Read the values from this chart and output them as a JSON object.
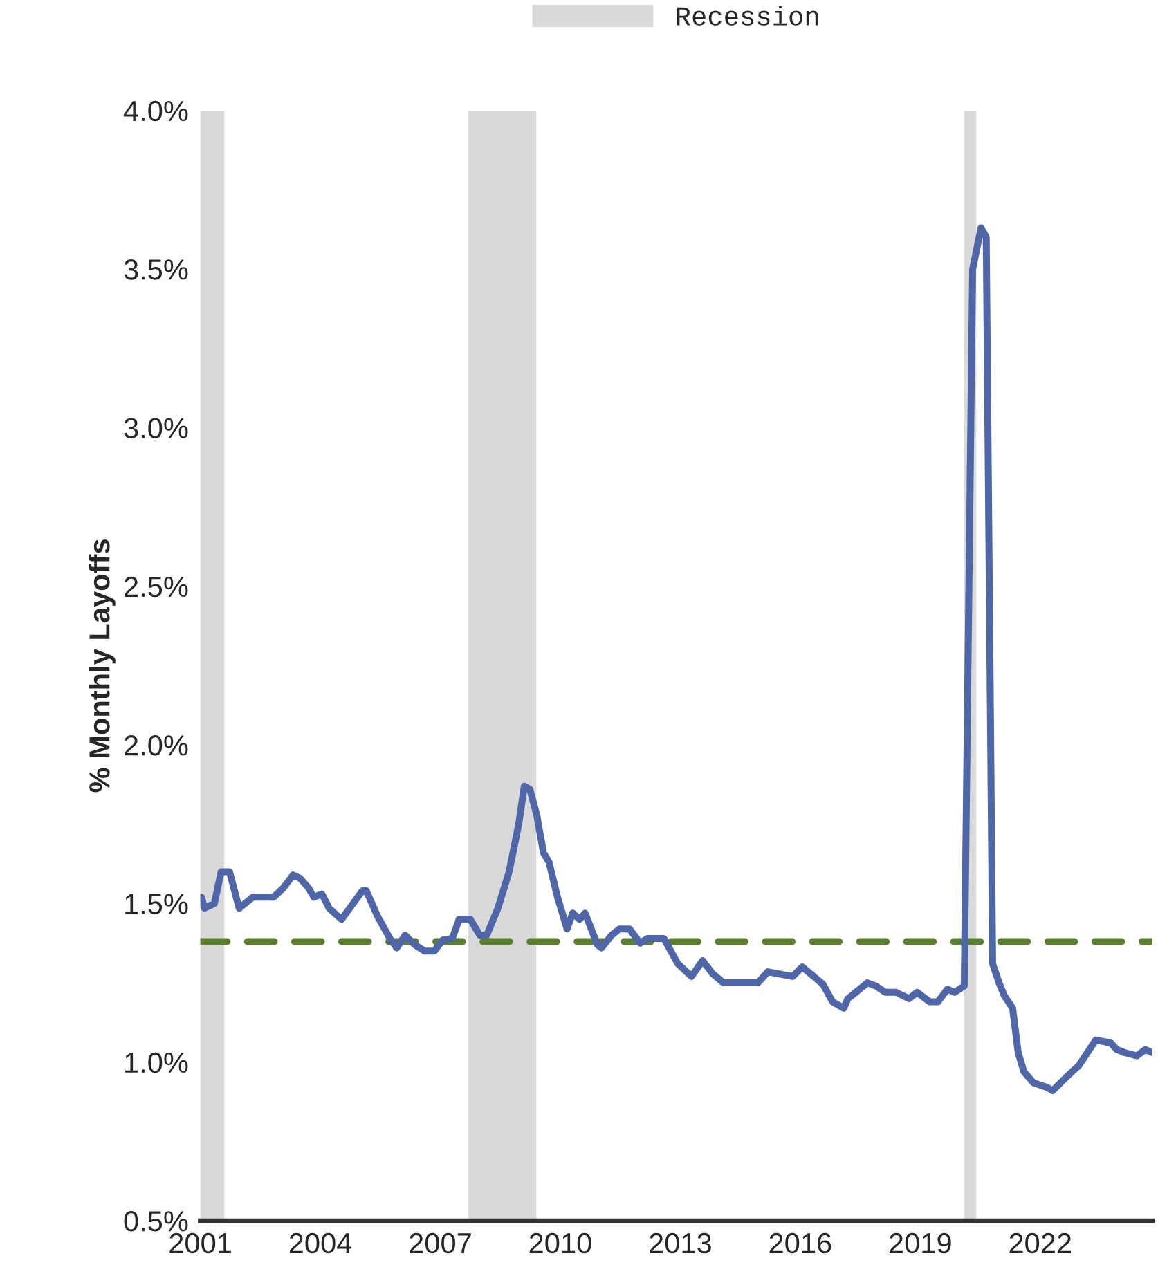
{
  "chart_data": {
    "type": "line",
    "ylabel": "% Monthly Layoffs",
    "x": [
      2001.03,
      2001.1,
      2001.35,
      2001.52,
      2001.73,
      2001.97,
      2002.31,
      2002.83,
      2003.08,
      2003.32,
      2003.49,
      2003.7,
      2003.84,
      2004.04,
      2004.22,
      2004.53,
      2005.05,
      2005.15,
      2005.43,
      2005.74,
      2005.91,
      2006.12,
      2006.36,
      2006.61,
      2006.85,
      2007.06,
      2007.3,
      2007.47,
      2007.75,
      2007.99,
      2008.16,
      2008.44,
      2008.72,
      2008.96,
      2009.1,
      2009.24,
      2009.41,
      2009.58,
      2009.72,
      2009.93,
      2010.17,
      2010.31,
      2010.48,
      2010.62,
      2010.93,
      2011.03,
      2011.28,
      2011.48,
      2011.73,
      2012.0,
      2012.18,
      2012.59,
      2012.94,
      2013.28,
      2013.56,
      2013.8,
      2014.08,
      2014.94,
      2015.19,
      2015.81,
      2016.05,
      2016.29,
      2016.57,
      2016.81,
      2017.09,
      2017.19,
      2017.68,
      2017.89,
      2018.13,
      2018.4,
      2018.72,
      2018.92,
      2019.24,
      2019.44,
      2019.68,
      2019.86,
      2020.1,
      2020.31,
      2020.52,
      2020.65,
      2020.81,
      2020.97,
      2021.1,
      2021.31,
      2021.45,
      2021.59,
      2021.83,
      2022.18,
      2022.31,
      2022.63,
      2022.97,
      2023.18,
      2023.39,
      2023.77,
      2023.91,
      2024.11,
      2024.42,
      2024.63,
      2024.8
    ],
    "series": [
      {
        "color": "#4f67a8",
        "values": [
          1.52,
          1.485,
          1.5,
          1.6,
          1.6,
          1.485,
          1.52,
          1.52,
          1.55,
          1.59,
          1.58,
          1.55,
          1.52,
          1.53,
          1.485,
          1.45,
          1.54,
          1.54,
          1.46,
          1.39,
          1.36,
          1.4,
          1.37,
          1.35,
          1.35,
          1.385,
          1.39,
          1.45,
          1.45,
          1.4,
          1.4,
          1.485,
          1.6,
          1.75,
          1.87,
          1.86,
          1.78,
          1.66,
          1.63,
          1.52,
          1.42,
          1.47,
          1.45,
          1.47,
          1.37,
          1.36,
          1.4,
          1.42,
          1.42,
          1.375,
          1.39,
          1.39,
          1.31,
          1.27,
          1.32,
          1.28,
          1.25,
          1.25,
          1.285,
          1.27,
          1.3,
          1.275,
          1.245,
          1.19,
          1.17,
          1.2,
          1.25,
          1.24,
          1.22,
          1.22,
          1.2,
          1.22,
          1.19,
          1.19,
          1.23,
          1.22,
          1.24,
          3.5,
          3.63,
          3.6,
          1.31,
          1.25,
          1.21,
          1.17,
          1.03,
          0.97,
          0.935,
          0.92,
          0.91,
          0.95,
          0.99,
          1.03,
          1.07,
          1.06,
          1.04,
          1.03,
          1.02,
          1.04,
          1.03
        ]
      }
    ],
    "xlim": [
      2001,
      2024.8
    ],
    "xticks": [
      2001,
      2004,
      2007,
      2010,
      2013,
      2016,
      2019,
      2022
    ],
    "ylim": [
      0.5,
      4.0
    ],
    "yticks": [
      {
        "value": 0.5,
        "label": "0.5%"
      },
      {
        "value": 1.0,
        "label": "1.0%"
      },
      {
        "value": 1.5,
        "label": "1.5%"
      },
      {
        "value": 2.0,
        "label": "2.0%"
      },
      {
        "value": 2.5,
        "label": "2.5%"
      },
      {
        "value": 3.0,
        "label": "3.0%"
      },
      {
        "value": 3.5,
        "label": "3.5%"
      },
      {
        "value": 4.0,
        "label": "4.0%"
      }
    ],
    "ref_lines": [
      {
        "axis": "y",
        "value": 1.38,
        "color": "#5a7f2e",
        "line_style": "dashed"
      }
    ],
    "bands": [
      {
        "axis": "x",
        "from": 2001.0,
        "to": 2001.6,
        "label": "Recession",
        "color": "#d9d9d9"
      },
      {
        "axis": "x",
        "from": 2007.7,
        "to": 2009.4,
        "color": "#d9d9d9"
      },
      {
        "axis": "x",
        "from": 2020.1,
        "to": 2020.4,
        "color": "#d9d9d9"
      }
    ],
    "grid": false,
    "legend": "top",
    "line_style": "solid",
    "marker": "none"
  }
}
